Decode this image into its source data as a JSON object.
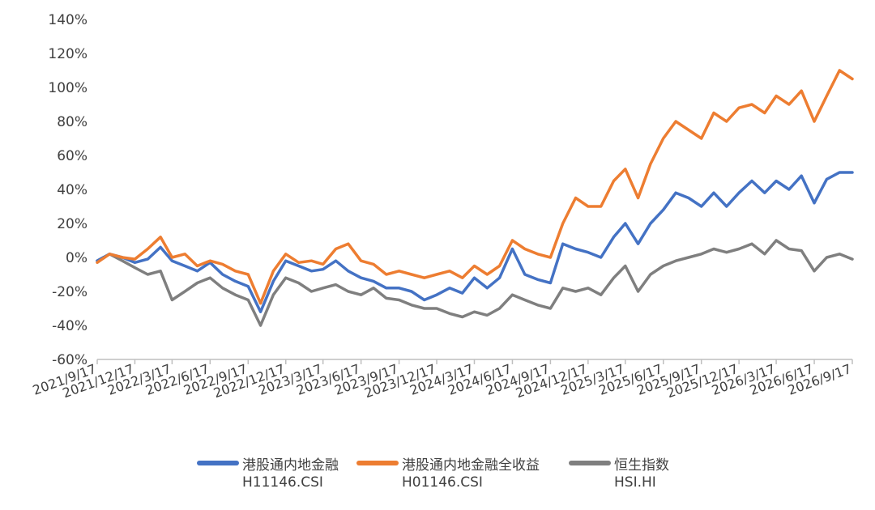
{
  "chart_data": {
    "type": "line",
    "y_axis": {
      "min": -60,
      "max": 140,
      "step": 20,
      "tick_labels": [
        "-60%",
        "-40%",
        "-20%",
        "0%",
        "20%",
        "40%",
        "60%",
        "80%",
        "100%",
        "120%",
        "140%"
      ]
    },
    "x_axis": {
      "start": "2021/9/17",
      "end": "2026/9/17",
      "tick_labels": [
        "2021/9/17",
        "2021/12/17",
        "2022/3/17",
        "2022/6/17",
        "2022/9/17",
        "2022/12/17",
        "2023/3/17",
        "2023/6/17",
        "2023/9/17",
        "2023/12/17",
        "2024/3/17",
        "2024/6/17",
        "2024/9/17",
        "2024/12/17",
        "2025/3/17",
        "2025/6/17",
        "2025/9/17",
        "2025/12/17",
        "2026/3/17",
        "2026/6/17",
        "2026/9/17"
      ]
    },
    "grid": false,
    "legend_position": "bottom",
    "series": [
      {
        "name": "港股通内地金融",
        "code": "H11146.CSI",
        "color": "#4472C4",
        "x": [
          "2021/9/17",
          "2021/10/17",
          "2021/11/17",
          "2021/12/17",
          "2022/1/17",
          "2022/2/17",
          "2022/3/17",
          "2022/4/17",
          "2022/5/17",
          "2022/6/17",
          "2022/7/17",
          "2022/8/17",
          "2022/9/17",
          "2022/10/17",
          "2022/11/17",
          "2022/12/17",
          "2023/1/17",
          "2023/2/17",
          "2023/3/17",
          "2023/4/17",
          "2023/5/17",
          "2023/6/17",
          "2023/7/17",
          "2023/8/17",
          "2023/9/17",
          "2023/10/17",
          "2023/11/17",
          "2023/12/17",
          "2024/1/17",
          "2024/2/17",
          "2024/3/17",
          "2024/4/17",
          "2024/5/17",
          "2024/6/17",
          "2024/7/17",
          "2024/8/17",
          "2024/9/17",
          "2024/10/17",
          "2024/11/17",
          "2024/12/17",
          "2025/1/17",
          "2025/2/17",
          "2025/3/17",
          "2025/4/17",
          "2025/5/17",
          "2025/6/17",
          "2025/7/17",
          "2025/8/17",
          "2025/9/17",
          "2025/10/17",
          "2025/11/17",
          "2025/12/17",
          "2026/1/17",
          "2026/2/17",
          "2026/3/17",
          "2026/4/17",
          "2026/5/17",
          "2026/6/17",
          "2026/7/17",
          "2026/8/17",
          "2026/9/17"
        ],
        "y": [
          -2,
          2,
          0,
          -3,
          -1,
          6,
          -2,
          -5,
          -8,
          -3,
          -10,
          -14,
          -17,
          -32,
          -14,
          -2,
          -5,
          -8,
          -7,
          -2,
          -8,
          -12,
          -14,
          -18,
          -18,
          -20,
          -25,
          -22,
          -18,
          -21,
          -12,
          -18,
          -12,
          5,
          -10,
          -13,
          -15,
          8,
          5,
          3,
          0,
          12,
          20,
          8,
          20,
          28,
          38,
          35,
          30,
          38,
          30,
          38,
          45,
          38,
          45,
          40,
          48,
          32,
          46,
          50,
          50
        ]
      },
      {
        "name": "港股通内地金融全收益",
        "code": "H01146.CSI",
        "color": "#ED7D31",
        "x": [
          "2021/9/17",
          "2021/10/17",
          "2021/11/17",
          "2021/12/17",
          "2022/1/17",
          "2022/2/17",
          "2022/3/17",
          "2022/4/17",
          "2022/5/17",
          "2022/6/17",
          "2022/7/17",
          "2022/8/17",
          "2022/9/17",
          "2022/10/17",
          "2022/11/17",
          "2022/12/17",
          "2023/1/17",
          "2023/2/17",
          "2023/3/17",
          "2023/4/17",
          "2023/5/17",
          "2023/6/17",
          "2023/7/17",
          "2023/8/17",
          "2023/9/17",
          "2023/10/17",
          "2023/11/17",
          "2023/12/17",
          "2024/1/17",
          "2024/2/17",
          "2024/3/17",
          "2024/4/17",
          "2024/5/17",
          "2024/6/17",
          "2024/7/17",
          "2024/8/17",
          "2024/9/17",
          "2024/10/17",
          "2024/11/17",
          "2024/12/17",
          "2025/1/17",
          "2025/2/17",
          "2025/3/17",
          "2025/4/17",
          "2025/5/17",
          "2025/6/17",
          "2025/7/17",
          "2025/8/17",
          "2025/9/17",
          "2025/10/17",
          "2025/11/17",
          "2025/12/17",
          "2026/1/17",
          "2026/2/17",
          "2026/3/17",
          "2026/4/17",
          "2026/5/17",
          "2026/6/17",
          "2026/7/17",
          "2026/8/17",
          "2026/9/17"
        ],
        "y": [
          -3,
          2,
          0,
          -1,
          5,
          12,
          0,
          2,
          -5,
          -2,
          -4,
          -8,
          -10,
          -27,
          -8,
          2,
          -3,
          -2,
          -4,
          5,
          8,
          -2,
          -4,
          -10,
          -8,
          -10,
          -12,
          -10,
          -8,
          -12,
          -5,
          -10,
          -5,
          10,
          5,
          2,
          0,
          20,
          35,
          30,
          30,
          45,
          52,
          35,
          55,
          70,
          80,
          75,
          70,
          85,
          80,
          88,
          90,
          85,
          95,
          90,
          98,
          80,
          95,
          110,
          105
        ]
      },
      {
        "name": "恒生指数",
        "code": "HSI.HI",
        "color": "#7F7F7F",
        "x": [
          "2021/9/17",
          "2021/10/17",
          "2021/11/17",
          "2021/12/17",
          "2022/1/17",
          "2022/2/17",
          "2022/3/17",
          "2022/4/17",
          "2022/5/17",
          "2022/6/17",
          "2022/7/17",
          "2022/8/17",
          "2022/9/17",
          "2022/10/17",
          "2022/11/17",
          "2022/12/17",
          "2023/1/17",
          "2023/2/17",
          "2023/3/17",
          "2023/4/17",
          "2023/5/17",
          "2023/6/17",
          "2023/7/17",
          "2023/8/17",
          "2023/9/17",
          "2023/10/17",
          "2023/11/17",
          "2023/12/17",
          "2024/1/17",
          "2024/2/17",
          "2024/3/17",
          "2024/4/17",
          "2024/5/17",
          "2024/6/17",
          "2024/7/17",
          "2024/8/17",
          "2024/9/17",
          "2024/10/17",
          "2024/11/17",
          "2024/12/17",
          "2025/1/17",
          "2025/2/17",
          "2025/3/17",
          "2025/4/17",
          "2025/5/17",
          "2025/6/17",
          "2025/7/17",
          "2025/8/17",
          "2025/9/17",
          "2025/10/17",
          "2025/11/17",
          "2025/12/17",
          "2026/1/17",
          "2026/2/17",
          "2026/3/17",
          "2026/4/17",
          "2026/5/17",
          "2026/6/17",
          "2026/7/17",
          "2026/8/17",
          "2026/9/17"
        ],
        "y": [
          -2,
          2,
          -2,
          -6,
          -10,
          -8,
          -25,
          -20,
          -15,
          -12,
          -18,
          -22,
          -25,
          -40,
          -22,
          -12,
          -15,
          -20,
          -18,
          -16,
          -20,
          -22,
          -18,
          -24,
          -25,
          -28,
          -30,
          -30,
          -33,
          -35,
          -32,
          -34,
          -30,
          -22,
          -25,
          -28,
          -30,
          -18,
          -20,
          -18,
          -22,
          -12,
          -5,
          -20,
          -10,
          -5,
          -2,
          0,
          2,
          5,
          3,
          5,
          8,
          2,
          10,
          5,
          4,
          -8,
          0,
          2,
          -1
        ]
      }
    ]
  }
}
